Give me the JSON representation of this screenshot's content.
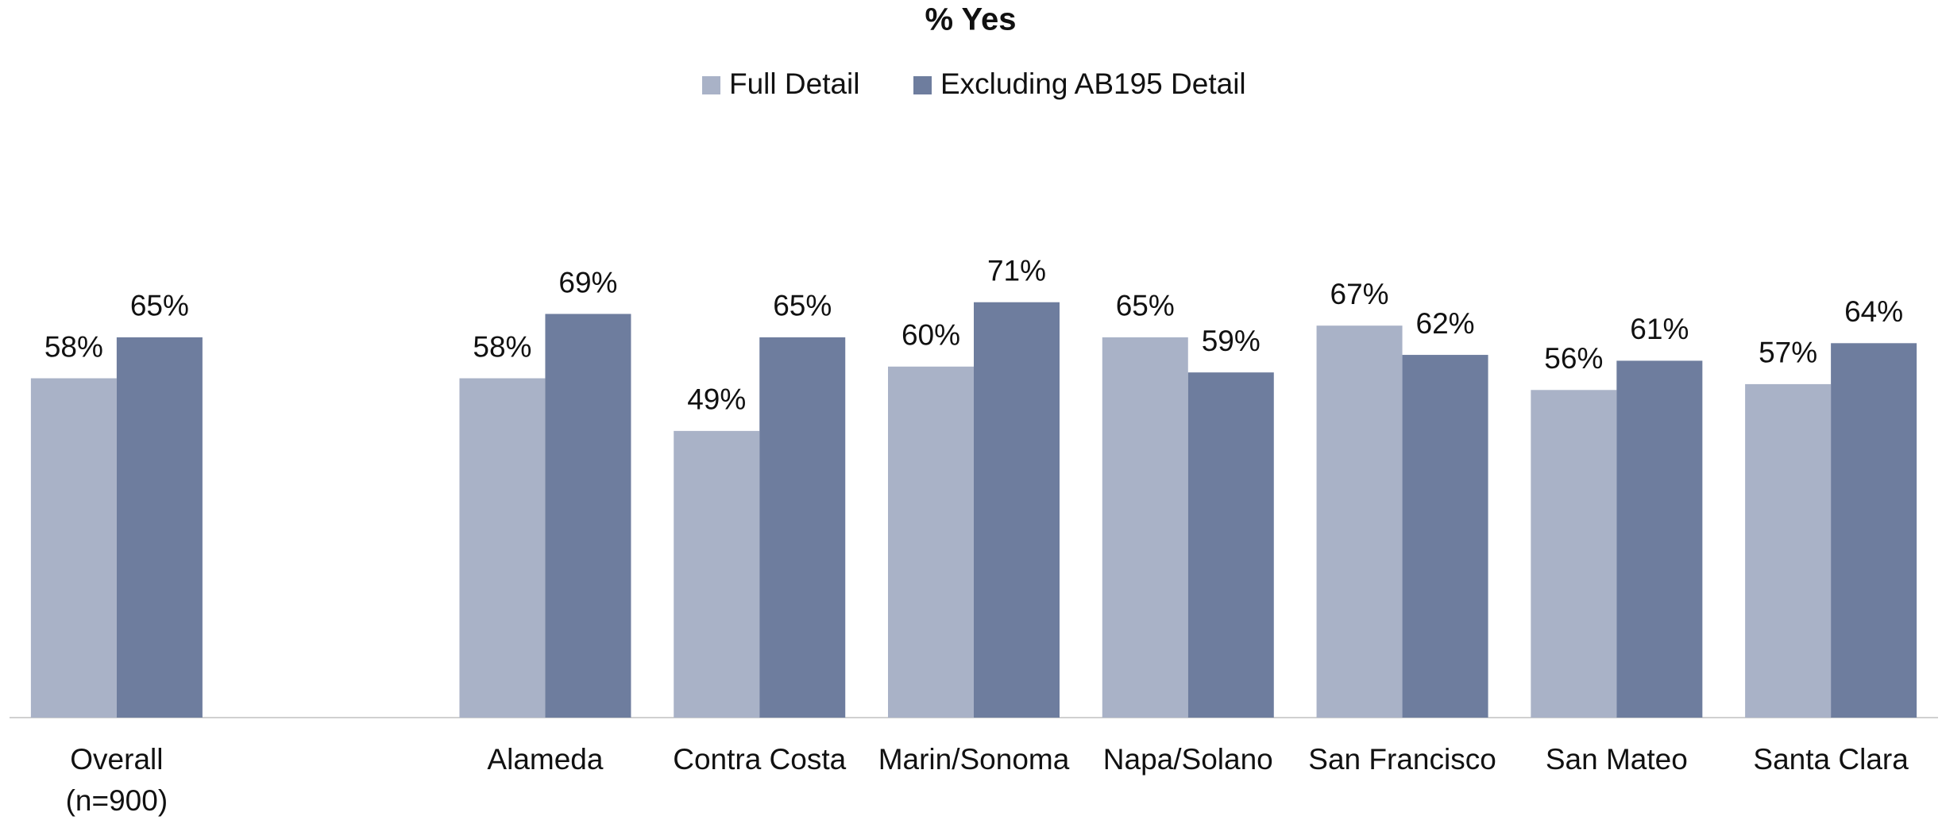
{
  "chart_data": {
    "type": "bar",
    "title": "% Yes",
    "categories": [
      "Overall\n(n=900)",
      null,
      "Alameda",
      "Contra Costa",
      "Marin/Sonoma",
      "Napa/Solano",
      "San Francisco",
      "San Mateo",
      "Santa Clara"
    ],
    "series": [
      {
        "name": "Full Detail",
        "color": "#a9b2c7",
        "values": [
          58,
          null,
          58,
          49,
          60,
          65,
          67,
          56,
          57
        ],
        "value_labels": [
          "58%",
          null,
          "58%",
          "49%",
          "60%",
          "65%",
          "67%",
          "56%",
          "57%"
        ]
      },
      {
        "name": "Excluding AB195 Detail",
        "color": "#6e7d9e",
        "values": [
          65,
          null,
          69,
          65,
          71,
          59,
          62,
          61,
          64
        ],
        "value_labels": [
          "65%",
          null,
          "69%",
          "65%",
          "71%",
          "59%",
          "62%",
          "61%",
          "64%"
        ]
      }
    ],
    "ylim": [
      0,
      100
    ],
    "legend": "top"
  }
}
